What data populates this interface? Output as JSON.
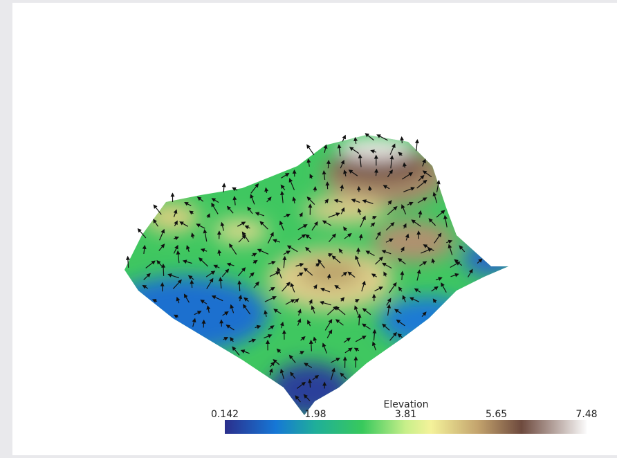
{
  "colorbar": {
    "title": "Elevation",
    "range": [
      0.142,
      7.48
    ],
    "ticks": [
      0.142,
      1.98,
      3.81,
      5.65,
      7.48
    ]
  }
}
